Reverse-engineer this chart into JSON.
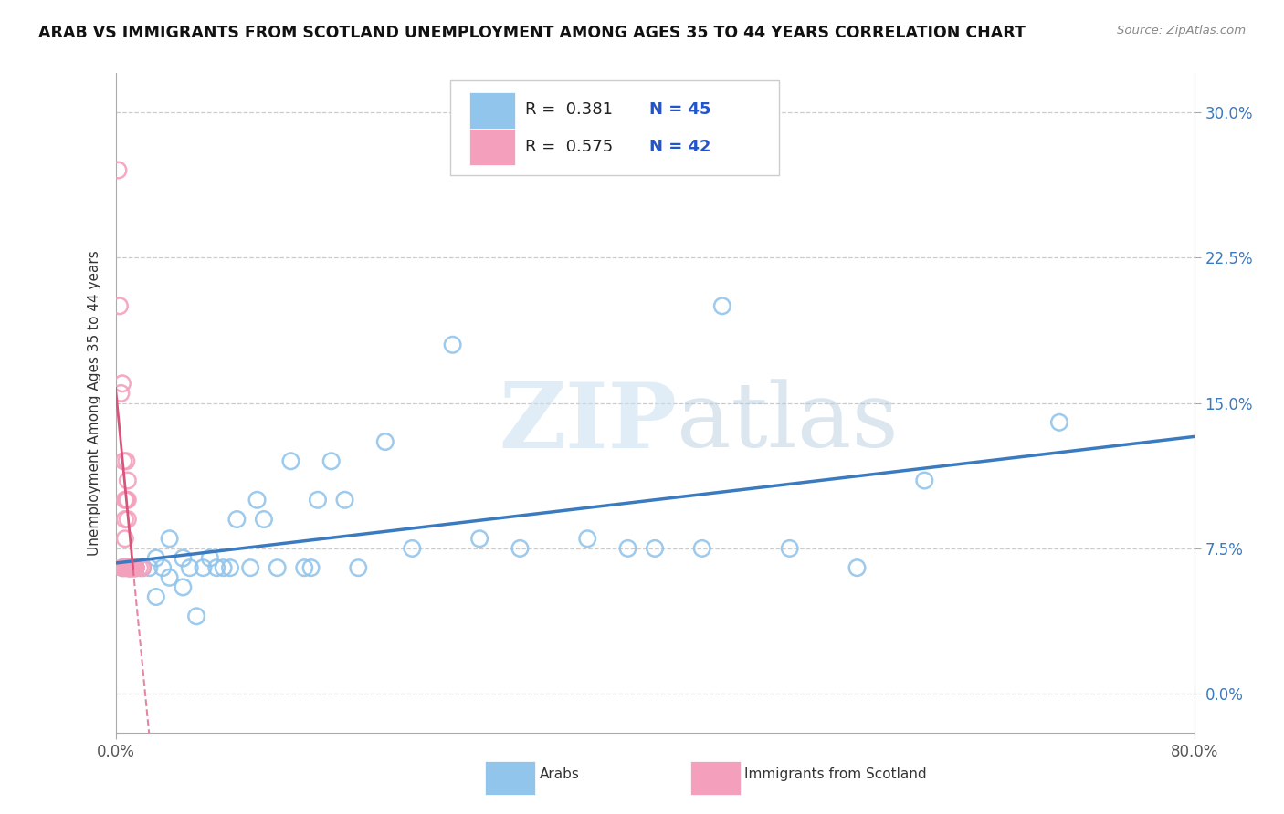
{
  "title": "ARAB VS IMMIGRANTS FROM SCOTLAND UNEMPLOYMENT AMONG AGES 35 TO 44 YEARS CORRELATION CHART",
  "source_text": "Source: ZipAtlas.com",
  "ylabel": "Unemployment Among Ages 35 to 44 years",
  "xlim": [
    0.0,
    0.8
  ],
  "ylim": [
    -0.02,
    0.32
  ],
  "plot_ylim": [
    0.0,
    0.3
  ],
  "xtick_positions": [
    0.0,
    0.8
  ],
  "xticklabels": [
    "0.0%",
    "80.0%"
  ],
  "yticks": [
    0.0,
    0.075,
    0.15,
    0.225,
    0.3
  ],
  "yticklabels_right": [
    "0.0%",
    "7.5%",
    "15.0%",
    "22.5%",
    "30.0%"
  ],
  "arab_color": "#92c5eb",
  "scotland_color": "#f4a0bc",
  "arab_line_color": "#3a7abf",
  "scotland_line_color": "#d9547a",
  "arab_R": 0.381,
  "arab_N": 45,
  "scotland_R": 0.575,
  "scotland_N": 42,
  "watermark_zip": "ZIP",
  "watermark_atlas": "atlas",
  "background_color": "#ffffff",
  "legend_R_color": "#2255cc",
  "legend_N_color": "#2255cc",
  "arab_scatter_x": [
    0.005,
    0.01,
    0.015,
    0.02,
    0.025,
    0.03,
    0.03,
    0.035,
    0.04,
    0.04,
    0.05,
    0.05,
    0.055,
    0.06,
    0.065,
    0.07,
    0.075,
    0.08,
    0.085,
    0.09,
    0.1,
    0.105,
    0.11,
    0.12,
    0.13,
    0.14,
    0.145,
    0.15,
    0.16,
    0.17,
    0.18,
    0.2,
    0.22,
    0.25,
    0.27,
    0.3,
    0.35,
    0.38,
    0.4,
    0.435,
    0.45,
    0.5,
    0.55,
    0.6,
    0.7
  ],
  "arab_scatter_y": [
    0.065,
    0.065,
    0.065,
    0.065,
    0.065,
    0.05,
    0.07,
    0.065,
    0.06,
    0.08,
    0.055,
    0.07,
    0.065,
    0.04,
    0.065,
    0.07,
    0.065,
    0.065,
    0.065,
    0.09,
    0.065,
    0.1,
    0.09,
    0.065,
    0.12,
    0.065,
    0.065,
    0.1,
    0.12,
    0.1,
    0.065,
    0.13,
    0.075,
    0.18,
    0.08,
    0.075,
    0.08,
    0.075,
    0.075,
    0.075,
    0.2,
    0.075,
    0.065,
    0.11,
    0.14
  ],
  "scotland_scatter_x": [
    0.002,
    0.003,
    0.004,
    0.005,
    0.005,
    0.006,
    0.006,
    0.007,
    0.007,
    0.007,
    0.007,
    0.008,
    0.008,
    0.008,
    0.009,
    0.009,
    0.009,
    0.009,
    0.01,
    0.01,
    0.01,
    0.01,
    0.01,
    0.01,
    0.011,
    0.011,
    0.011,
    0.012,
    0.012,
    0.012,
    0.012,
    0.013,
    0.013,
    0.013,
    0.014,
    0.014,
    0.014,
    0.015,
    0.015,
    0.015,
    0.018,
    0.02
  ],
  "scotland_scatter_y": [
    0.27,
    0.2,
    0.155,
    0.16,
    0.065,
    0.12,
    0.065,
    0.1,
    0.09,
    0.08,
    0.065,
    0.12,
    0.1,
    0.065,
    0.11,
    0.1,
    0.09,
    0.065,
    0.065,
    0.065,
    0.065,
    0.065,
    0.065,
    0.065,
    0.065,
    0.065,
    0.065,
    0.065,
    0.065,
    0.065,
    0.065,
    0.065,
    0.065,
    0.065,
    0.065,
    0.065,
    0.065,
    0.065,
    0.065,
    0.065,
    0.065,
    0.065
  ]
}
